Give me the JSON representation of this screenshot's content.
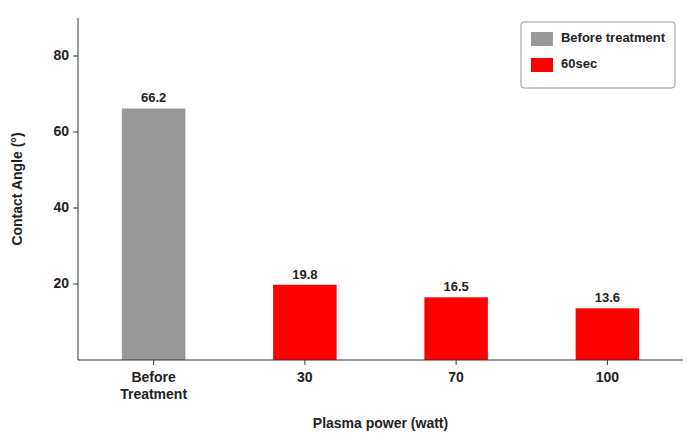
{
  "chart_data": {
    "type": "bar",
    "categories": [
      "Before\nTreatment",
      "30",
      "70",
      "100"
    ],
    "series": [
      {
        "name": "Before treatment",
        "color": "#999999",
        "values": [
          66.2,
          null,
          null,
          null
        ]
      },
      {
        "name": "60sec",
        "color": "#ff0000",
        "values": [
          null,
          19.8,
          16.5,
          13.6
        ]
      }
    ],
    "xlabel": "Plasma power (watt)",
    "ylabel": "Contact Angle (°)",
    "ylim": [
      0,
      90
    ],
    "yticks": [
      20,
      40,
      60,
      80
    ],
    "grid": false,
    "legend": "upper right",
    "data_labels": true
  }
}
